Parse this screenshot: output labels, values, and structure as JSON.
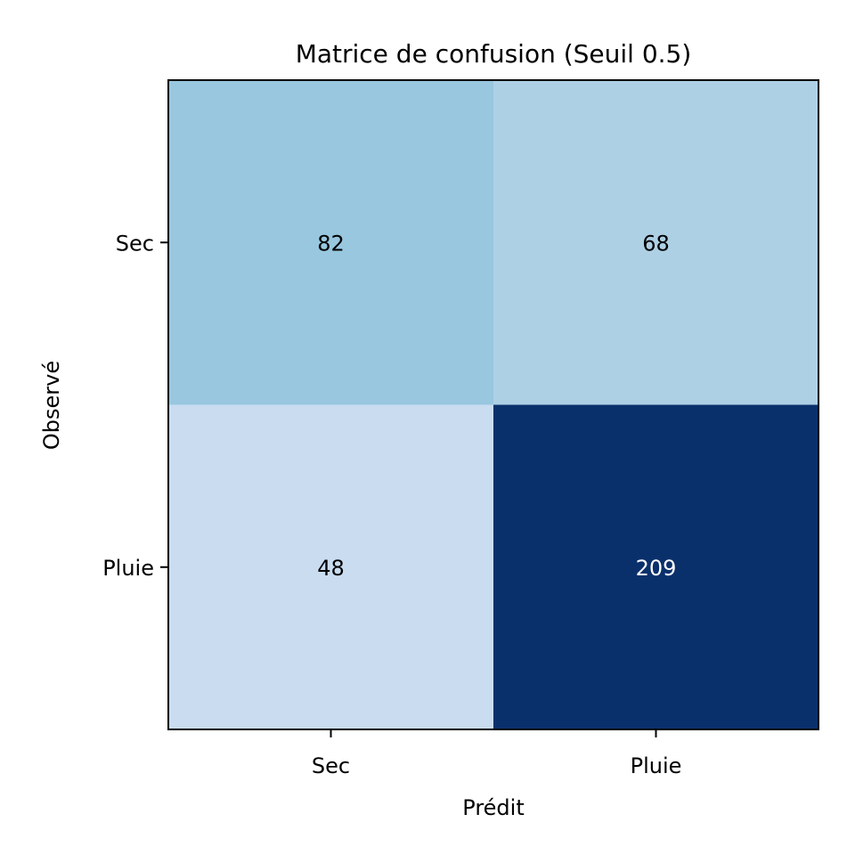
{
  "chart_data": {
    "type": "heatmap",
    "title": "Matrice de confusion (Seuil 0.5)",
    "xlabel": "Prédit",
    "ylabel": "Observé",
    "x_categories": [
      "Sec",
      "Pluie"
    ],
    "y_categories": [
      "Sec",
      "Pluie"
    ],
    "values": [
      [
        82,
        68
      ],
      [
        48,
        209
      ]
    ],
    "colormap": "Blues",
    "cell_colors": [
      [
        "#98c7df",
        "#aed0e5"
      ],
      [
        "#c9dcf0",
        "#0a306b"
      ]
    ],
    "text_colors": [
      [
        "#000000",
        "#000000"
      ],
      [
        "#000000",
        "#ffffff"
      ]
    ]
  }
}
